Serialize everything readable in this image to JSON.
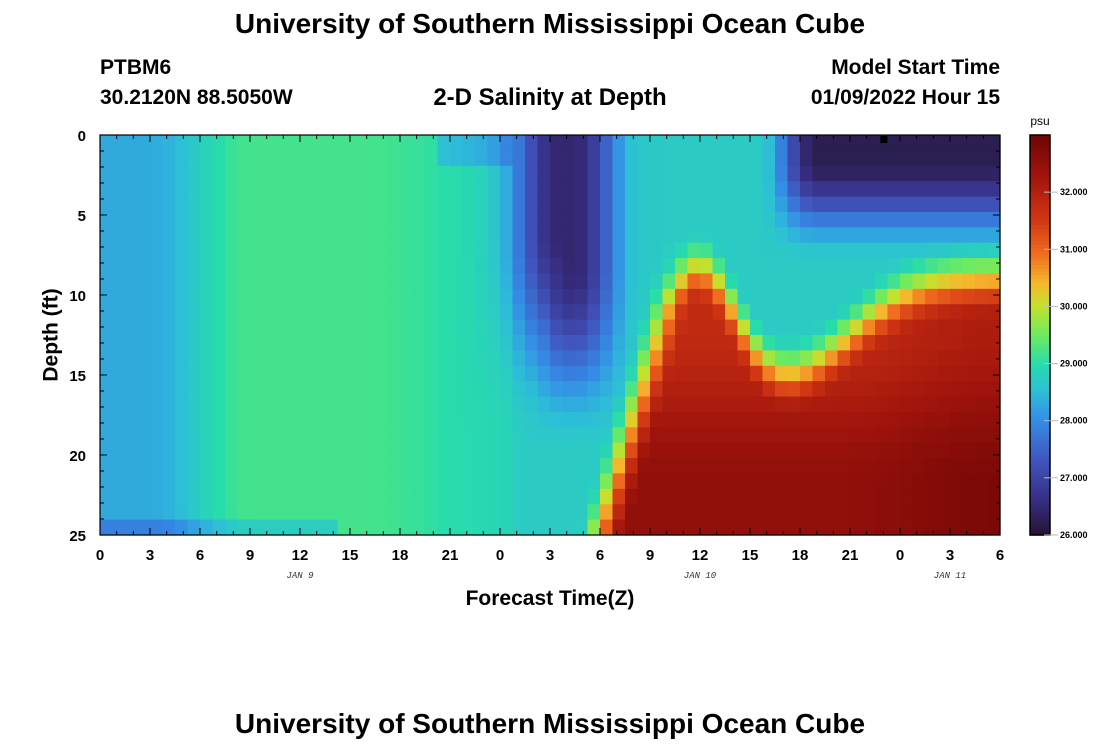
{
  "header": {
    "title": "University of Southern Mississippi Ocean Cube",
    "station": "PTBM6",
    "coords": "30.2120N  88.5050W",
    "subtitle": "2-D Salinity at Depth",
    "model_start_label": "Model Start Time",
    "model_start_value": "01/09/2022 Hour 15"
  },
  "footer": {
    "title": "University of Southern Mississippi Ocean Cube"
  },
  "chart_data": {
    "type": "heatmap",
    "title": "2-D Salinity at Depth",
    "xlabel": "Forecast Time(Z)",
    "ylabel": "Depth (ft)",
    "x_tick_labels": [
      "0",
      "3",
      "6",
      "9",
      "12",
      "15",
      "18",
      "21",
      "0",
      "3",
      "6",
      "9",
      "12",
      "15",
      "18",
      "21",
      "0",
      "3",
      "6"
    ],
    "x_hours": [
      0,
      3,
      6,
      9,
      12,
      15,
      18,
      21,
      24,
      27,
      30,
      33,
      36,
      39,
      42,
      45,
      48,
      51,
      54
    ],
    "xlim": [
      0,
      54
    ],
    "date_labels": [
      {
        "text": "JAN 9",
        "hour": 12
      },
      {
        "text": "JAN 10",
        "hour": 36
      },
      {
        "text": "JAN 11",
        "hour": 51
      }
    ],
    "y_tick_labels": [
      "0",
      "5",
      "10",
      "15",
      "20",
      "25"
    ],
    "y_values": [
      0,
      5,
      10,
      15,
      20,
      25
    ],
    "ylim": [
      0,
      25
    ],
    "colorbar": {
      "unit": "psu",
      "min": 26.0,
      "max": 33.0,
      "ticks": [
        26,
        27,
        28,
        29,
        30,
        31,
        32
      ],
      "tick_labels": [
        "26.000",
        "27.000",
        "28.000",
        "29.000",
        "30.000",
        "31.000",
        "32.000"
      ]
    },
    "field_description": {
      "surface_freshening_1": {
        "hours": [
          25,
          31
        ],
        "depth_ft": [
          0,
          18
        ],
        "min_psu": 26.2
      },
      "surface_freshening_2": {
        "hours": [
          41,
          54
        ],
        "depth_ft": [
          0,
          5
        ],
        "min_psu": 26.0
      },
      "high_salinity_core": {
        "hours": [
          31,
          54
        ],
        "depth_ft": [
          10,
          25
        ],
        "max_psu": 32.9
      }
    }
  }
}
